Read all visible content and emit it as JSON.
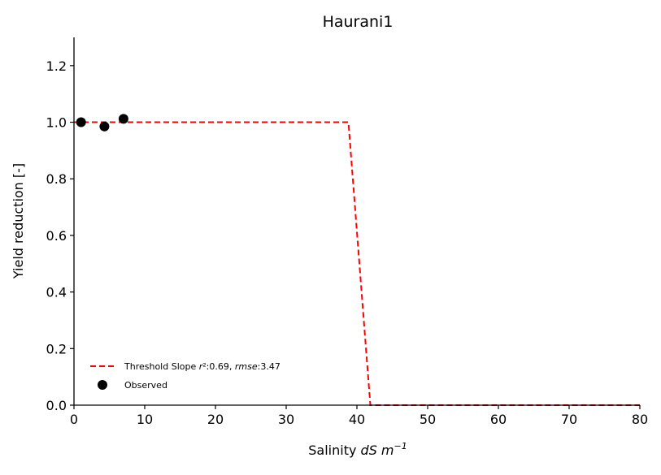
{
  "chart_data": {
    "type": "line",
    "title": "Haurani1",
    "xlabel_prefix": "Salinity ",
    "xlabel_unit": "dS m",
    "xlabel_exp": "−1",
    "ylabel": "Yield reduction [-]",
    "xlim": [
      0,
      80
    ],
    "ylim": [
      0,
      1.3
    ],
    "xticks": [
      0,
      10,
      20,
      30,
      40,
      50,
      60,
      70,
      80
    ],
    "xtick_labels": [
      "0",
      "10",
      "20",
      "30",
      "40",
      "50",
      "60",
      "70",
      "80"
    ],
    "yticks": [
      0,
      0.2,
      0.4,
      0.6,
      0.8,
      1.0,
      1.2
    ],
    "ytick_labels": [
      "0.0",
      "0.2",
      "0.4",
      "0.6",
      "0.8",
      "1.0",
      "1.2"
    ],
    "legend_position": "lower-left",
    "series": [
      {
        "name": "Threshold Slope r²:0.69, rmse:3.47",
        "legend_parts": {
          "prefix": "Threshold Slope ",
          "r_symbol": "r",
          "r_value": "²:0.69, ",
          "rmse_symbol": "rmse",
          "rmse_value": ":3.47"
        },
        "kind": "line",
        "style": "dashed",
        "color": "#ff0000",
        "x": [
          0,
          38.8,
          41.9,
          80
        ],
        "y": [
          1.0,
          1.0,
          0.0,
          0.0
        ]
      },
      {
        "name": "Observed",
        "kind": "scatter",
        "color": "#000000",
        "x": [
          1.0,
          4.3,
          7.0
        ],
        "y": [
          1.0,
          0.985,
          1.012
        ]
      }
    ]
  }
}
